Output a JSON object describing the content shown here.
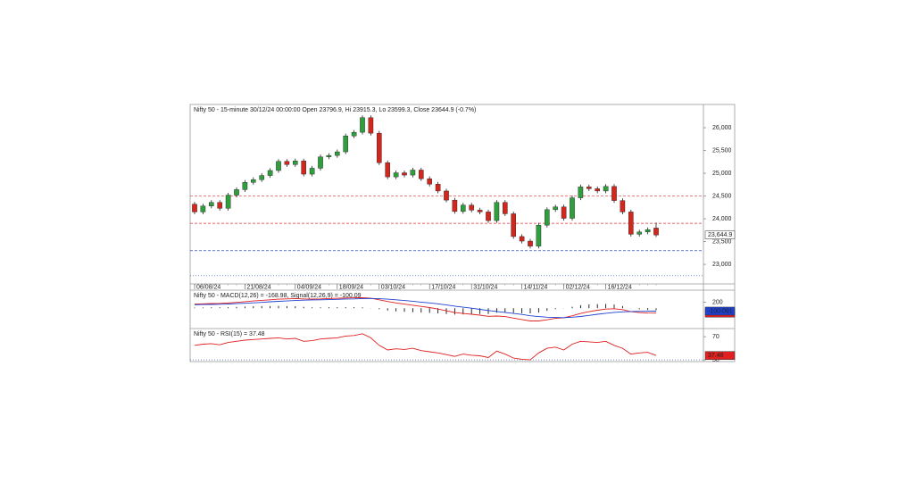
{
  "chart_data": [
    {
      "type": "candlestick",
      "title": "Nifty 50 - 15-minute 30/12/24 00:00:00 Open 23796.9, Hi 23915.3, Lo 23599.3, Close 23644.9 (-0.7%)",
      "categories": [
        "06/08/24",
        null,
        null,
        null,
        null,
        null,
        "21/08/24",
        null,
        null,
        null,
        null,
        null,
        "04/09/24",
        null,
        null,
        null,
        null,
        "18/09/24",
        null,
        null,
        null,
        null,
        "03/10/24",
        null,
        null,
        null,
        null,
        null,
        "17/10/24",
        null,
        null,
        null,
        null,
        "31/10/24",
        null,
        null,
        null,
        null,
        null,
        "14/11/24",
        null,
        null,
        null,
        null,
        "02/12/24",
        null,
        null,
        null,
        null,
        "16/12/24",
        null,
        null,
        null,
        null,
        null,
        null
      ],
      "open": [
        24320,
        24150,
        24280,
        24360,
        24230,
        24520,
        24640,
        24800,
        24860,
        24950,
        25060,
        25260,
        25190,
        25270,
        24980,
        25110,
        25360,
        25390,
        25470,
        25820,
        25900,
        26220,
        25880,
        25230,
        24920,
        25010,
        24960,
        25070,
        24880,
        24760,
        24610,
        24410,
        24160,
        24300,
        24190,
        24150,
        23960,
        24360,
        24110,
        23610,
        23510,
        23400,
        23860,
        24200,
        24260,
        24010,
        24460,
        24700,
        24660,
        24610,
        24710,
        24400,
        24150,
        23660,
        23710,
        23796.9
      ],
      "high": [
        24370,
        24330,
        24410,
        24410,
        24570,
        24690,
        24850,
        24910,
        25000,
        25110,
        25310,
        25310,
        25320,
        25320,
        25160,
        25410,
        25440,
        25520,
        25870,
        25950,
        26270,
        26270,
        25930,
        25280,
        25060,
        25060,
        25120,
        25120,
        24930,
        24810,
        24660,
        24460,
        24350,
        24350,
        24240,
        24200,
        24410,
        24410,
        24160,
        23660,
        23560,
        23910,
        24250,
        24310,
        24310,
        24510,
        24750,
        24750,
        24710,
        24760,
        24760,
        24450,
        24200,
        23760,
        23810,
        23915.3
      ],
      "low": [
        24100,
        24100,
        24230,
        24180,
        24180,
        24470,
        24590,
        24750,
        24810,
        24900,
        25010,
        25140,
        25140,
        24930,
        24930,
        25060,
        25310,
        25340,
        25420,
        25770,
        25850,
        25830,
        25180,
        24870,
        24870,
        24910,
        24910,
        24830,
        24710,
        24560,
        24360,
        24110,
        24110,
        24140,
        24100,
        23910,
        23910,
        24060,
        23560,
        23460,
        23350,
        23350,
        23810,
        24150,
        23960,
        23960,
        24410,
        24610,
        24560,
        24560,
        24350,
        24100,
        23610,
        23610,
        23660,
        23599.3
      ],
      "close": [
        24150,
        24280,
        24360,
        24230,
        24520,
        24640,
        24800,
        24860,
        24950,
        25060,
        25260,
        25190,
        25270,
        24980,
        25110,
        25360,
        25390,
        25470,
        25820,
        25900,
        26220,
        25880,
        25230,
        24920,
        25010,
        24960,
        25070,
        24880,
        24760,
        24610,
        24410,
        24160,
        24300,
        24190,
        24150,
        23960,
        24360,
        24110,
        23610,
        23510,
        23400,
        23860,
        24200,
        24260,
        24010,
        24460,
        24700,
        24660,
        24610,
        24710,
        24400,
        24150,
        23660,
        23710,
        23760,
        23644.9
      ],
      "close_label": "23,644.9",
      "up_color": "#2f9e3c",
      "down_color": "#d3261c",
      "ylim": [
        22570,
        26510
      ],
      "yticks": [
        {
          "value": 23000,
          "label": "23,000"
        },
        {
          "value": 23500,
          "label": "23,500"
        },
        {
          "value": 24000,
          "label": "24,000"
        },
        {
          "value": 24500,
          "label": "24,500"
        },
        {
          "value": 25000,
          "label": "25,000"
        },
        {
          "value": 25500,
          "label": "25,500"
        },
        {
          "value": 26000,
          "label": "26,000"
        }
      ],
      "levels": [
        {
          "value": 24500,
          "color": "#e03030",
          "style": "dashed"
        },
        {
          "value": 23900,
          "color": "#e03030",
          "style": "dashed"
        },
        {
          "value": 23300,
          "color": "#3050c0",
          "style": "dashed"
        },
        {
          "value": 22750,
          "color": "#3050c0",
          "style": "dotted"
        }
      ]
    },
    {
      "type": "macd",
      "title": "Nifty 50 - MACD(12,26) = -168.98, Signal(12,26,9) = -100.09",
      "ylim": [
        -700,
        620
      ],
      "yticks": [
        200
      ],
      "series": [
        {
          "color": "#e02020",
          "values": [
            140,
            150,
            160,
            165,
            180,
            200,
            225,
            250,
            270,
            290,
            310,
            320,
            330,
            320,
            315,
            320,
            330,
            340,
            350,
            355,
            360,
            340,
            290,
            230,
            180,
            140,
            100,
            60,
            20,
            -30,
            -90,
            -150,
            -180,
            -210,
            -240,
            -280,
            -270,
            -290,
            -340,
            -390,
            -440,
            -440,
            -400,
            -350,
            -330,
            -260,
            -180,
            -120,
            -70,
            -30,
            -20,
            -50,
            -120,
            -150,
            -165,
            -168.98
          ],
          "last_label": "-168.98"
        },
        {
          "color": "#2040d0",
          "values": [
            120,
            125,
            130,
            135,
            145,
            155,
            170,
            185,
            200,
            220,
            235,
            250,
            265,
            275,
            285,
            290,
            295,
            305,
            315,
            320,
            330,
            335,
            325,
            310,
            290,
            265,
            240,
            210,
            180,
            150,
            110,
            70,
            35,
            0,
            -40,
            -80,
            -115,
            -145,
            -180,
            -215,
            -260,
            -290,
            -310,
            -320,
            -325,
            -310,
            -285,
            -250,
            -210,
            -175,
            -145,
            -125,
            -115,
            -110,
            -105,
            -100.09
          ],
          "last_label": "-100.091"
        }
      ],
      "histogram": {
        "color": "#111111",
        "values": [
          20,
          25,
          30,
          30,
          35,
          45,
          55,
          65,
          70,
          70,
          75,
          70,
          65,
          45,
          30,
          30,
          35,
          35,
          35,
          35,
          30,
          5,
          -35,
          -80,
          -110,
          -125,
          -140,
          -150,
          -160,
          -180,
          -200,
          -220,
          -215,
          -210,
          -200,
          -200,
          -155,
          -145,
          -160,
          -175,
          -180,
          -150,
          -90,
          -30,
          -5,
          50,
          105,
          130,
          140,
          145,
          125,
          75,
          -5,
          -40,
          -60,
          -69
        ]
      }
    },
    {
      "type": "rsi",
      "title": "Nifty 50 - RSI(15) = 37.48",
      "ylim": [
        27,
        84
      ],
      "yticks": [
        30,
        70
      ],
      "levels": [
        {
          "value": 30,
          "color": "#3050c0",
          "style": "dotted"
        }
      ],
      "series": [
        {
          "color": "#e02020",
          "values": [
            55,
            57,
            58,
            56,
            60,
            62,
            64,
            65,
            66,
            67,
            68,
            66,
            67,
            62,
            63,
            66,
            67,
            68,
            71,
            72,
            75,
            68,
            55,
            47,
            49,
            48,
            50,
            46,
            44,
            42,
            39,
            36,
            40,
            38,
            37,
            34,
            45,
            40,
            33,
            31,
            30,
            42,
            50,
            52,
            47,
            57,
            62,
            61,
            60,
            62,
            55,
            50,
            40,
            42,
            43,
            37.48
          ],
          "last_label": "37.48"
        }
      ]
    }
  ]
}
